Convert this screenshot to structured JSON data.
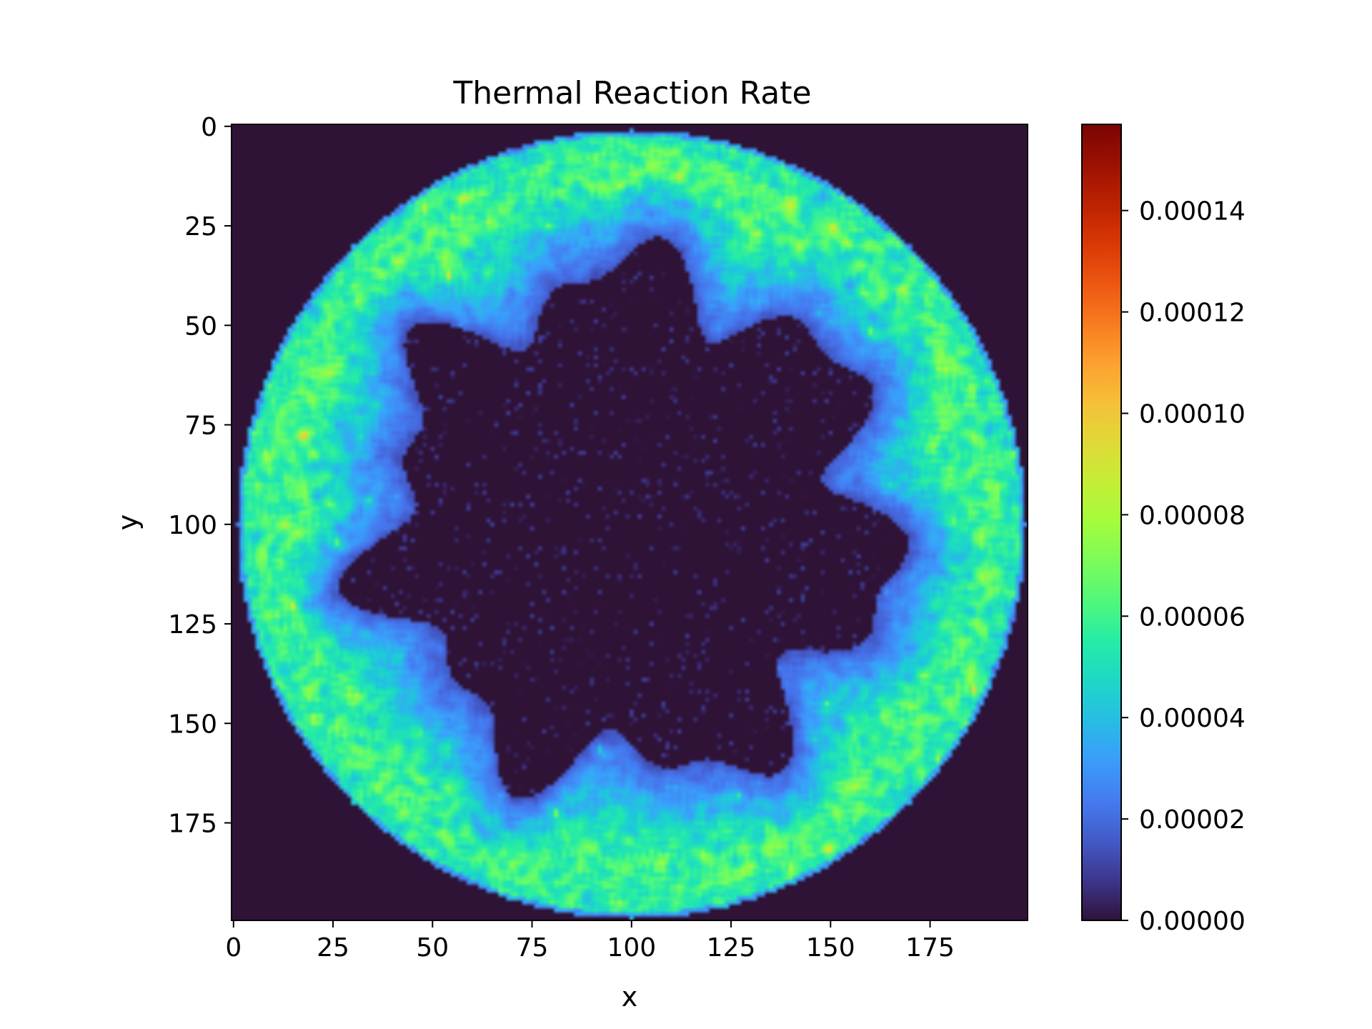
{
  "chart_data": {
    "type": "heatmap",
    "title": "Thermal Reaction Rate",
    "xlabel": "x",
    "ylabel": "y",
    "grid_size": [
      200,
      200
    ],
    "xlim": [
      0,
      199
    ],
    "ylim": [
      199,
      0
    ],
    "x_ticks": [
      0,
      25,
      50,
      75,
      100,
      125,
      150,
      175
    ],
    "y_ticks": [
      0,
      25,
      50,
      75,
      100,
      125,
      150,
      175
    ],
    "x_tick_labels": [
      "0",
      "25",
      "50",
      "75",
      "100",
      "125",
      "150",
      "175"
    ],
    "y_tick_labels": [
      "0",
      "25",
      "50",
      "75",
      "100",
      "125",
      "150",
      "175"
    ],
    "colormap": "turbo",
    "colorbar": {
      "range": [
        0,
        0.000157
      ],
      "ticks": [
        0,
        2e-05,
        4e-05,
        6e-05,
        8e-05,
        0.0001,
        0.00012,
        0.00014
      ],
      "tick_labels": [
        "0.00000",
        "0.00002",
        "0.00004",
        "0.00006",
        "0.00008",
        "0.00010",
        "0.00012",
        "0.00014"
      ]
    },
    "pattern": {
      "description_values": "circular domain centered near (100, 100) with radius ~99; outside region is 0",
      "center": [
        100,
        100
      ],
      "domain_radius": 99,
      "inner_core_radius": 62,
      "ring_peak_value": 6e-05,
      "hotspot_max_value": 0.000157,
      "core_value": 0.0
    },
    "background_color": "#2f1337"
  }
}
